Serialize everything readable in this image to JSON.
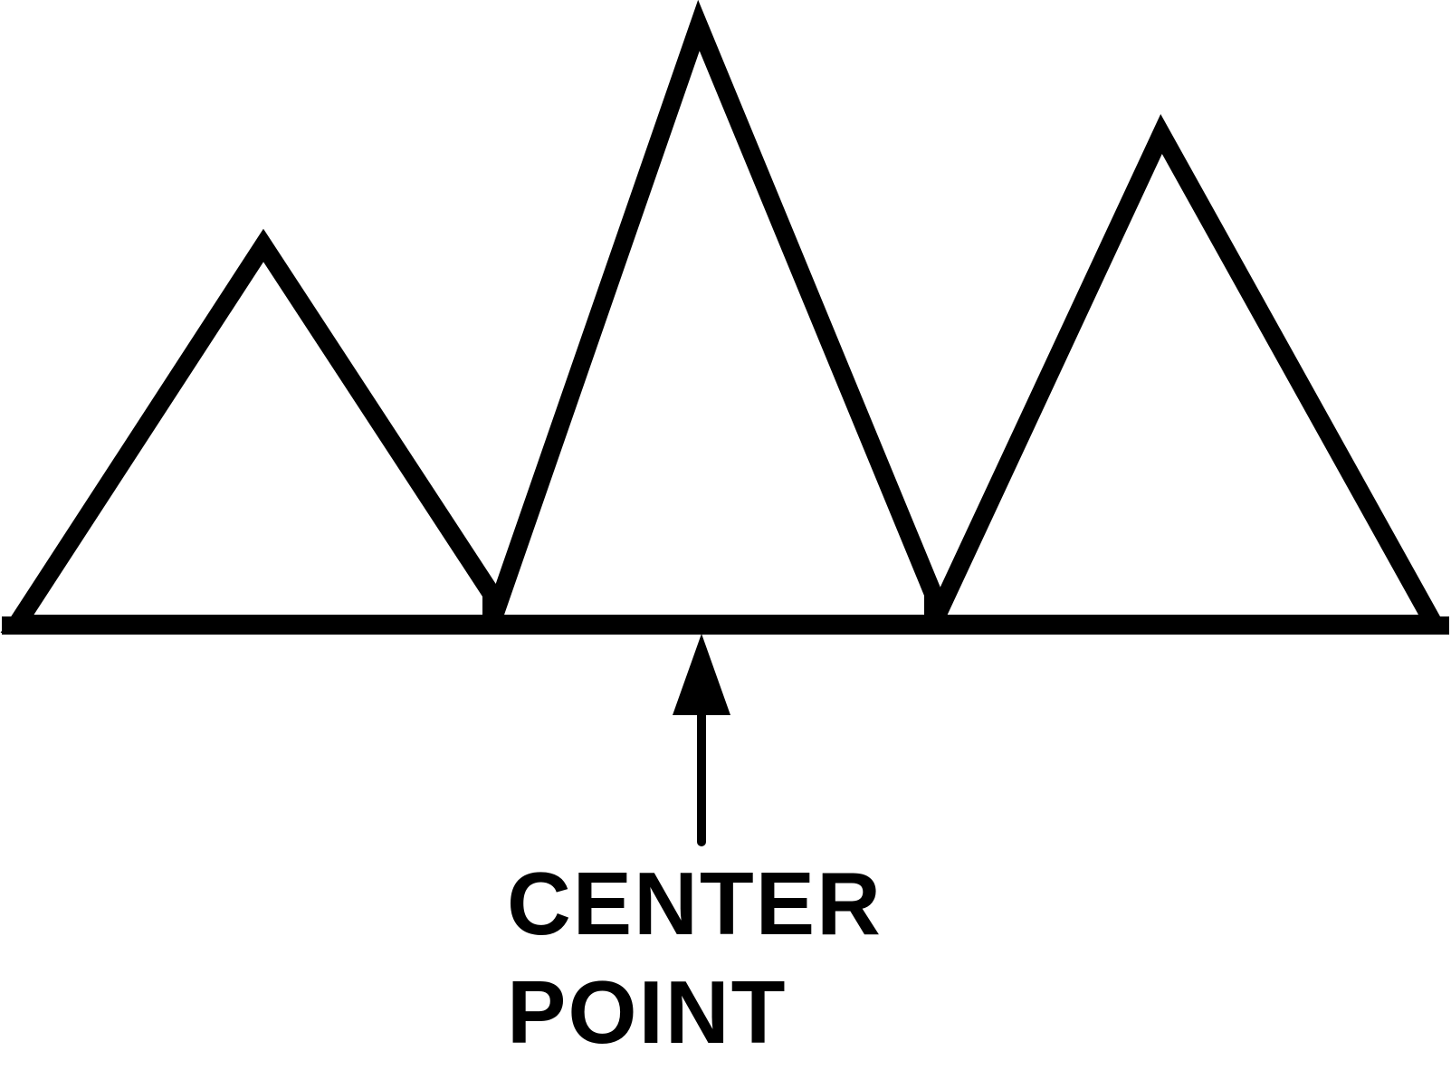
{
  "label": {
    "line1": "CENTER",
    "line2": "POINT"
  },
  "colors": {
    "stroke": "#000000",
    "background": "#ffffff"
  }
}
